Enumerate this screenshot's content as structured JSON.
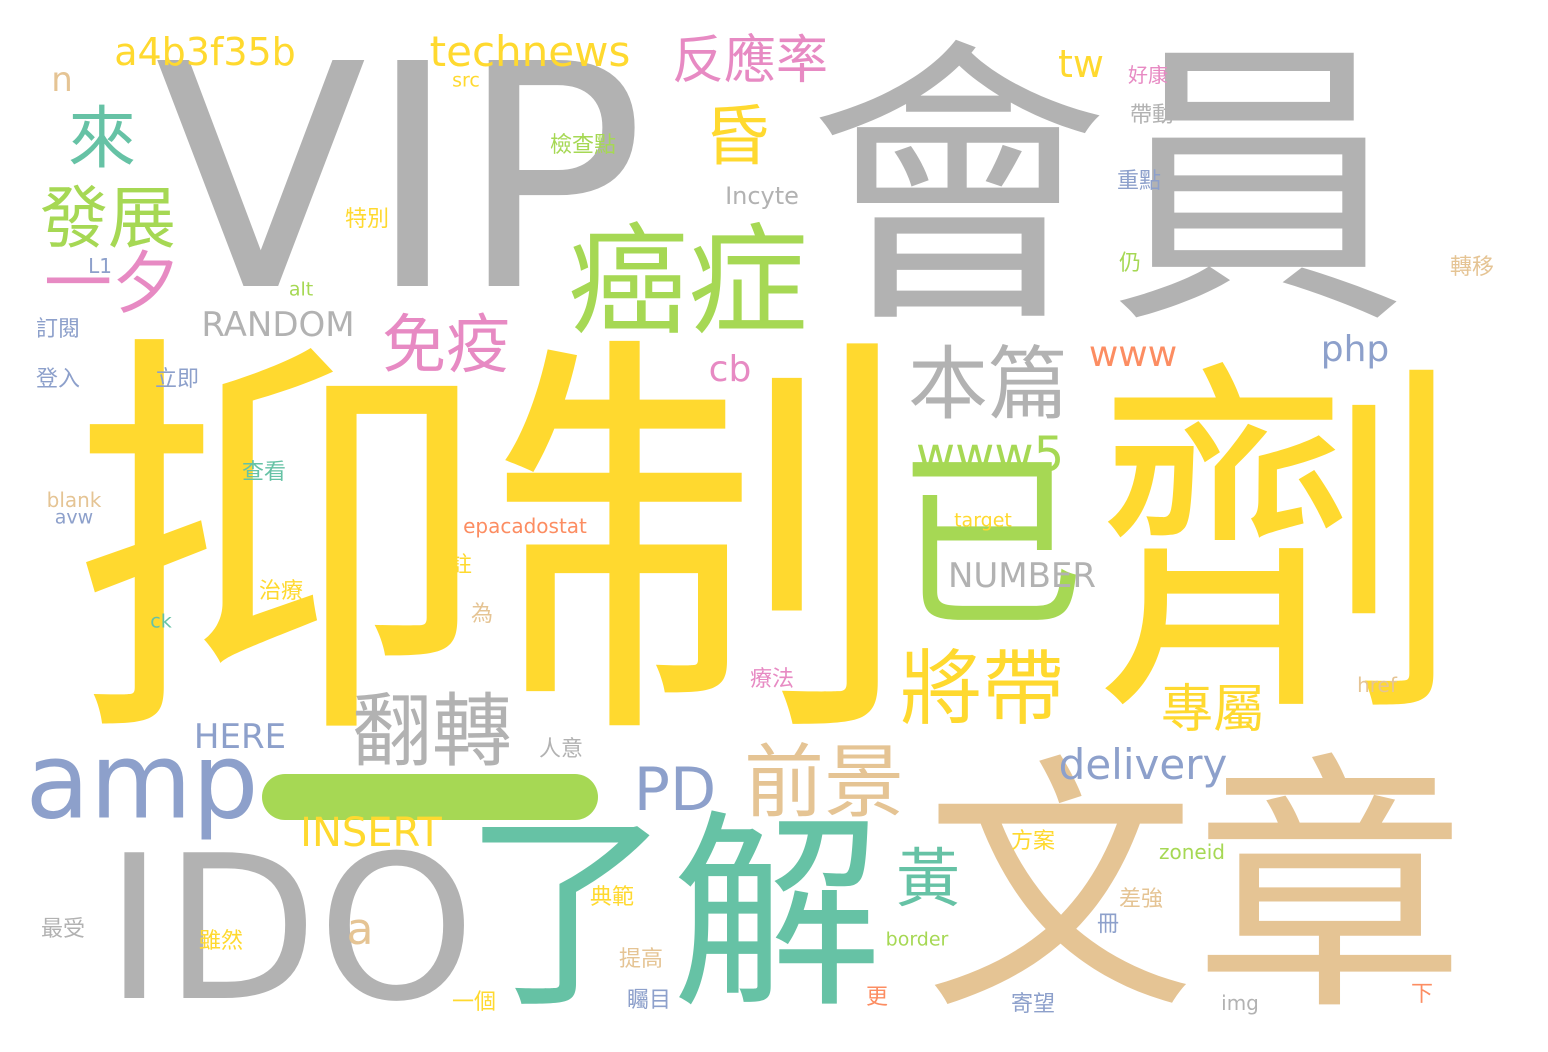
{
  "palette": {
    "gray": "#b2b2b2",
    "yellow": "#ffd92f",
    "tan": "#e5c494",
    "green": "#a6d854",
    "teal": "#66c2a5",
    "pink": "#e78ac3",
    "blue": "#8da0cb",
    "orange": "#fc8d62"
  },
  "words": [
    {
      "text": "VIP",
      "color": "gray"
    },
    {
      "text": "會員",
      "color": "gray"
    },
    {
      "text": "抑制",
      "color": "yellow"
    },
    {
      "text": "劑",
      "color": "yellow"
    },
    {
      "text": "文章",
      "color": "tan"
    },
    {
      "text": "IDO",
      "color": "gray"
    },
    {
      "text": "了解",
      "color": "teal"
    },
    {
      "text": "癌症",
      "color": "green"
    },
    {
      "text": "已",
      "color": "green"
    },
    {
      "text": "amp",
      "color": "blue"
    },
    {
      "text": "翻轉",
      "color": "gray"
    },
    {
      "text": "將帶",
      "color": "yellow"
    },
    {
      "text": "本篇",
      "color": "gray"
    },
    {
      "text": "前景",
      "color": "tan"
    },
    {
      "text": "發展",
      "color": "green"
    },
    {
      "text": "一夕",
      "color": "pink"
    },
    {
      "text": "來",
      "color": "teal"
    },
    {
      "text": "昏",
      "color": "yellow"
    },
    {
      "text": "免疫",
      "color": "pink"
    },
    {
      "text": "反應率",
      "color": "pink"
    },
    {
      "text": "technews",
      "color": "yellow"
    },
    {
      "text": "a4b3f35b",
      "color": "yellow"
    },
    {
      "text": "PD",
      "color": "blue"
    },
    {
      "text": "黃",
      "color": "teal"
    },
    {
      "text": "專屬",
      "color": "yellow"
    },
    {
      "text": "www5",
      "color": "green"
    },
    {
      "text": "delivery",
      "color": "blue"
    },
    {
      "text": "INSERT",
      "color": "yellow"
    },
    {
      "text": "RANDOM",
      "color": "gray"
    },
    {
      "text": "NUMBER",
      "color": "gray"
    },
    {
      "text": "HERE",
      "color": "blue"
    },
    {
      "text": "www",
      "color": "orange"
    },
    {
      "text": "php",
      "color": "blue"
    },
    {
      "text": "tw",
      "color": "yellow"
    },
    {
      "text": "cb",
      "color": "pink"
    },
    {
      "text": "a",
      "color": "tan"
    },
    {
      "text": "n",
      "color": "tan"
    },
    {
      "text": "Incyte",
      "color": "gray"
    },
    {
      "text": "epacadostat",
      "color": "orange"
    },
    {
      "text": "src",
      "color": "yellow"
    },
    {
      "text": "檢查點",
      "color": "green"
    },
    {
      "text": "好康",
      "color": "pink"
    },
    {
      "text": "帶動",
      "color": "gray"
    },
    {
      "text": "重點",
      "color": "blue"
    },
    {
      "text": "特別",
      "color": "yellow"
    },
    {
      "text": "仍",
      "color": "green"
    },
    {
      "text": "轉移",
      "color": "tan"
    },
    {
      "text": "L1",
      "color": "blue"
    },
    {
      "text": "alt",
      "color": "green"
    },
    {
      "text": "訂閱",
      "color": "blue"
    },
    {
      "text": "登入",
      "color": "blue"
    },
    {
      "text": "立即",
      "color": "blue"
    },
    {
      "text": "查看",
      "color": "teal"
    },
    {
      "text": "blank",
      "color": "tan"
    },
    {
      "text": "avw",
      "color": "blue"
    },
    {
      "text": "target",
      "color": "yellow"
    },
    {
      "text": "註",
      "color": "yellow"
    },
    {
      "text": "治療",
      "color": "yellow"
    },
    {
      "text": "為",
      "color": "tan"
    },
    {
      "text": "ck",
      "color": "teal"
    },
    {
      "text": "療法",
      "color": "pink"
    },
    {
      "text": "href",
      "color": "tan"
    },
    {
      "text": "人意",
      "color": "gray"
    },
    {
      "text": "方案",
      "color": "yellow"
    },
    {
      "text": "zoneid",
      "color": "green"
    },
    {
      "text": "典範",
      "color": "yellow"
    },
    {
      "text": "差強",
      "color": "tan"
    },
    {
      "text": "最受",
      "color": "gray"
    },
    {
      "text": "雖然",
      "color": "yellow"
    },
    {
      "text": "border",
      "color": "green"
    },
    {
      "text": "冊",
      "color": "blue"
    },
    {
      "text": "提高",
      "color": "tan"
    },
    {
      "text": "一個",
      "color": "yellow"
    },
    {
      "text": "矚目",
      "color": "blue"
    },
    {
      "text": "更",
      "color": "orange"
    },
    {
      "text": "寄望",
      "color": "blue"
    },
    {
      "text": "img",
      "color": "gray"
    },
    {
      "text": "下",
      "color": "orange"
    }
  ]
}
